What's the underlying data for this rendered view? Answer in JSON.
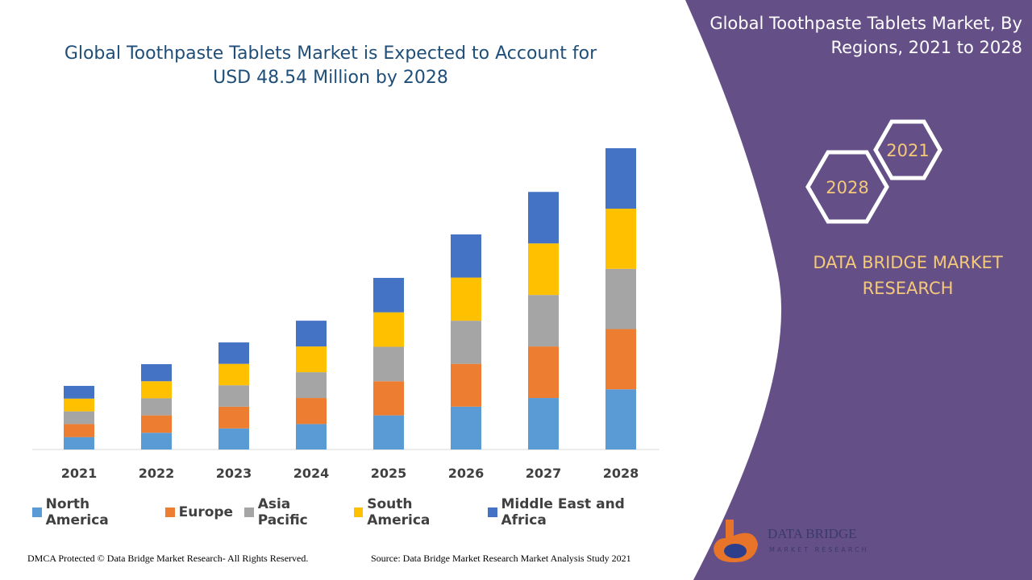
{
  "chart_data": {
    "type": "stacked_bar",
    "title": "Global Toothpaste Tablets Market is Expected to Account for USD 48.54 Million by 2028",
    "categories": [
      "2021",
      "2022",
      "2023",
      "2024",
      "2025",
      "2026",
      "2027",
      "2028"
    ],
    "series": [
      {
        "name": "North America",
        "color": "#5b9bd5",
        "values": [
          2.0,
          2.7,
          3.4,
          4.1,
          5.5,
          6.9,
          8.3,
          9.7
        ]
      },
      {
        "name": "Europe",
        "color": "#ed7d31",
        "values": [
          2.1,
          2.8,
          3.5,
          4.2,
          5.5,
          6.9,
          8.3,
          9.7
        ]
      },
      {
        "name": "Asia Pacific",
        "color": "#a5a5a5",
        "values": [
          2.05,
          2.75,
          3.45,
          4.15,
          5.55,
          6.95,
          8.3,
          9.7
        ]
      },
      {
        "name": "South America",
        "color": "#ffc000",
        "values": [
          2.05,
          2.75,
          3.45,
          4.15,
          5.55,
          6.95,
          8.3,
          9.7
        ]
      },
      {
        "name": "Middle East and Africa",
        "color": "#4472c4",
        "values": [
          2.05,
          2.75,
          3.45,
          4.15,
          5.55,
          6.95,
          8.3,
          9.74
        ]
      }
    ]
  },
  "side_panel": {
    "title": "Global Toothpaste Tablets Market, By Regions, 2021 to 2028",
    "years": [
      "2021",
      "2028"
    ],
    "brand": "DATA BRIDGE MARKET RESEARCH"
  },
  "logo": {
    "name": "DATA BRIDGE",
    "tagline": "MARKET RESEARCH"
  },
  "footer": {
    "dmca": "DMCA Protected © Data Bridge Market Research- All Rights Reserved.",
    "source": "Source: Data Bridge Market Research Market Analysis Study 2021"
  }
}
